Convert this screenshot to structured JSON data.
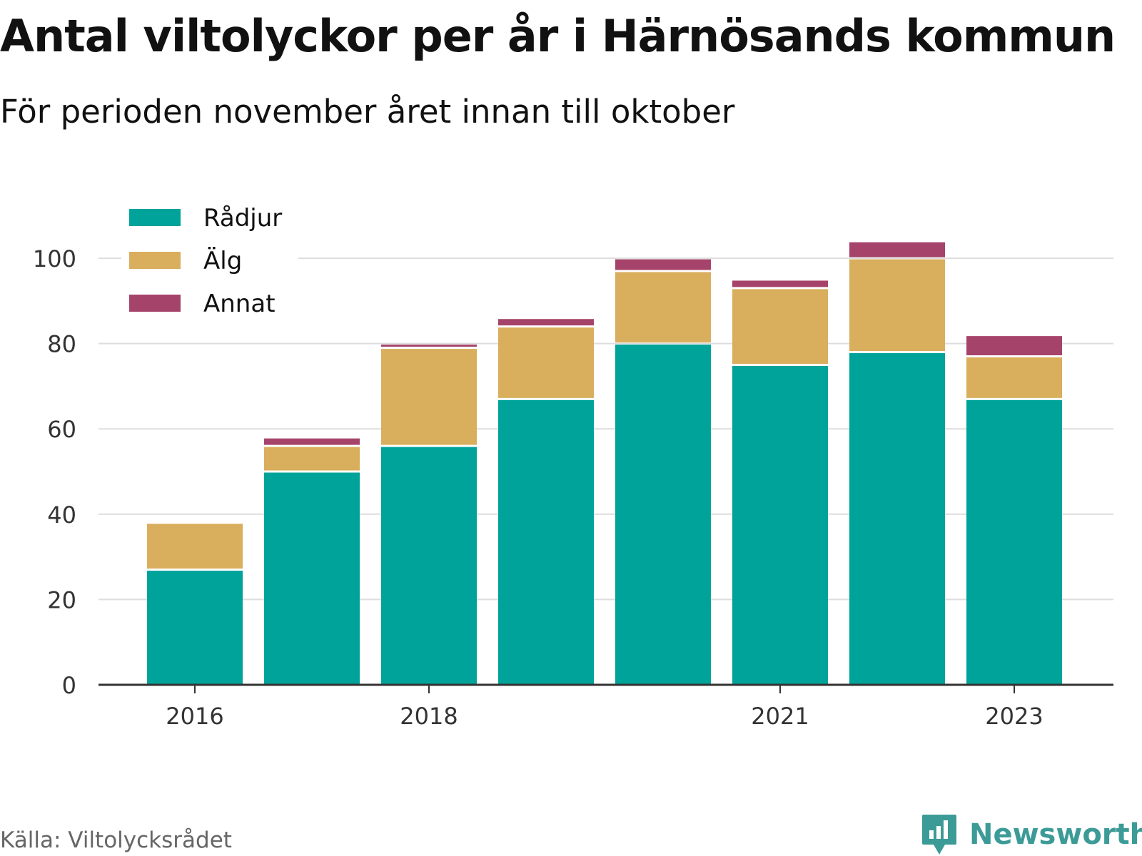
{
  "header": {
    "title": "Antal viltolyckor per år i Härnösands kommun",
    "subtitle": "För perioden november året innan till oktober"
  },
  "footer": {
    "source": "Källa: Viltolycksrådet",
    "brand": "Newsworthy"
  },
  "colors": {
    "radjur": "#00a39a",
    "alg": "#d9ae5c",
    "annat": "#a6436a",
    "grid": "#dddddd",
    "axis": "#333333",
    "brand": "#3c9b97"
  },
  "chart_data": {
    "type": "bar",
    "stacked": true,
    "title": "Antal viltolyckor per år i Härnösands kommun",
    "subtitle": "För perioden november året innan till oktober",
    "categories": [
      "2016",
      "2017",
      "2018",
      "2019",
      "2020",
      "2021",
      "2022",
      "2023"
    ],
    "x_tick_labels": [
      "2016",
      "2018",
      "2021",
      "2023"
    ],
    "series": [
      {
        "name": "Rådjur",
        "color": "#00a39a",
        "values": [
          27,
          50,
          56,
          67,
          80,
          75,
          78,
          67
        ]
      },
      {
        "name": "Älg",
        "color": "#d9ae5c",
        "values": [
          11,
          6,
          23,
          17,
          17,
          18,
          22,
          10
        ]
      },
      {
        "name": "Annat",
        "color": "#a6436a",
        "values": [
          0,
          2,
          1,
          2,
          3,
          2,
          4,
          5
        ]
      }
    ],
    "ylim": [
      0,
      100
    ],
    "y_ticks": [
      0,
      20,
      40,
      60,
      80,
      100
    ],
    "xlabel": "",
    "ylabel": "",
    "grid": true,
    "legend_position": "top-left"
  }
}
